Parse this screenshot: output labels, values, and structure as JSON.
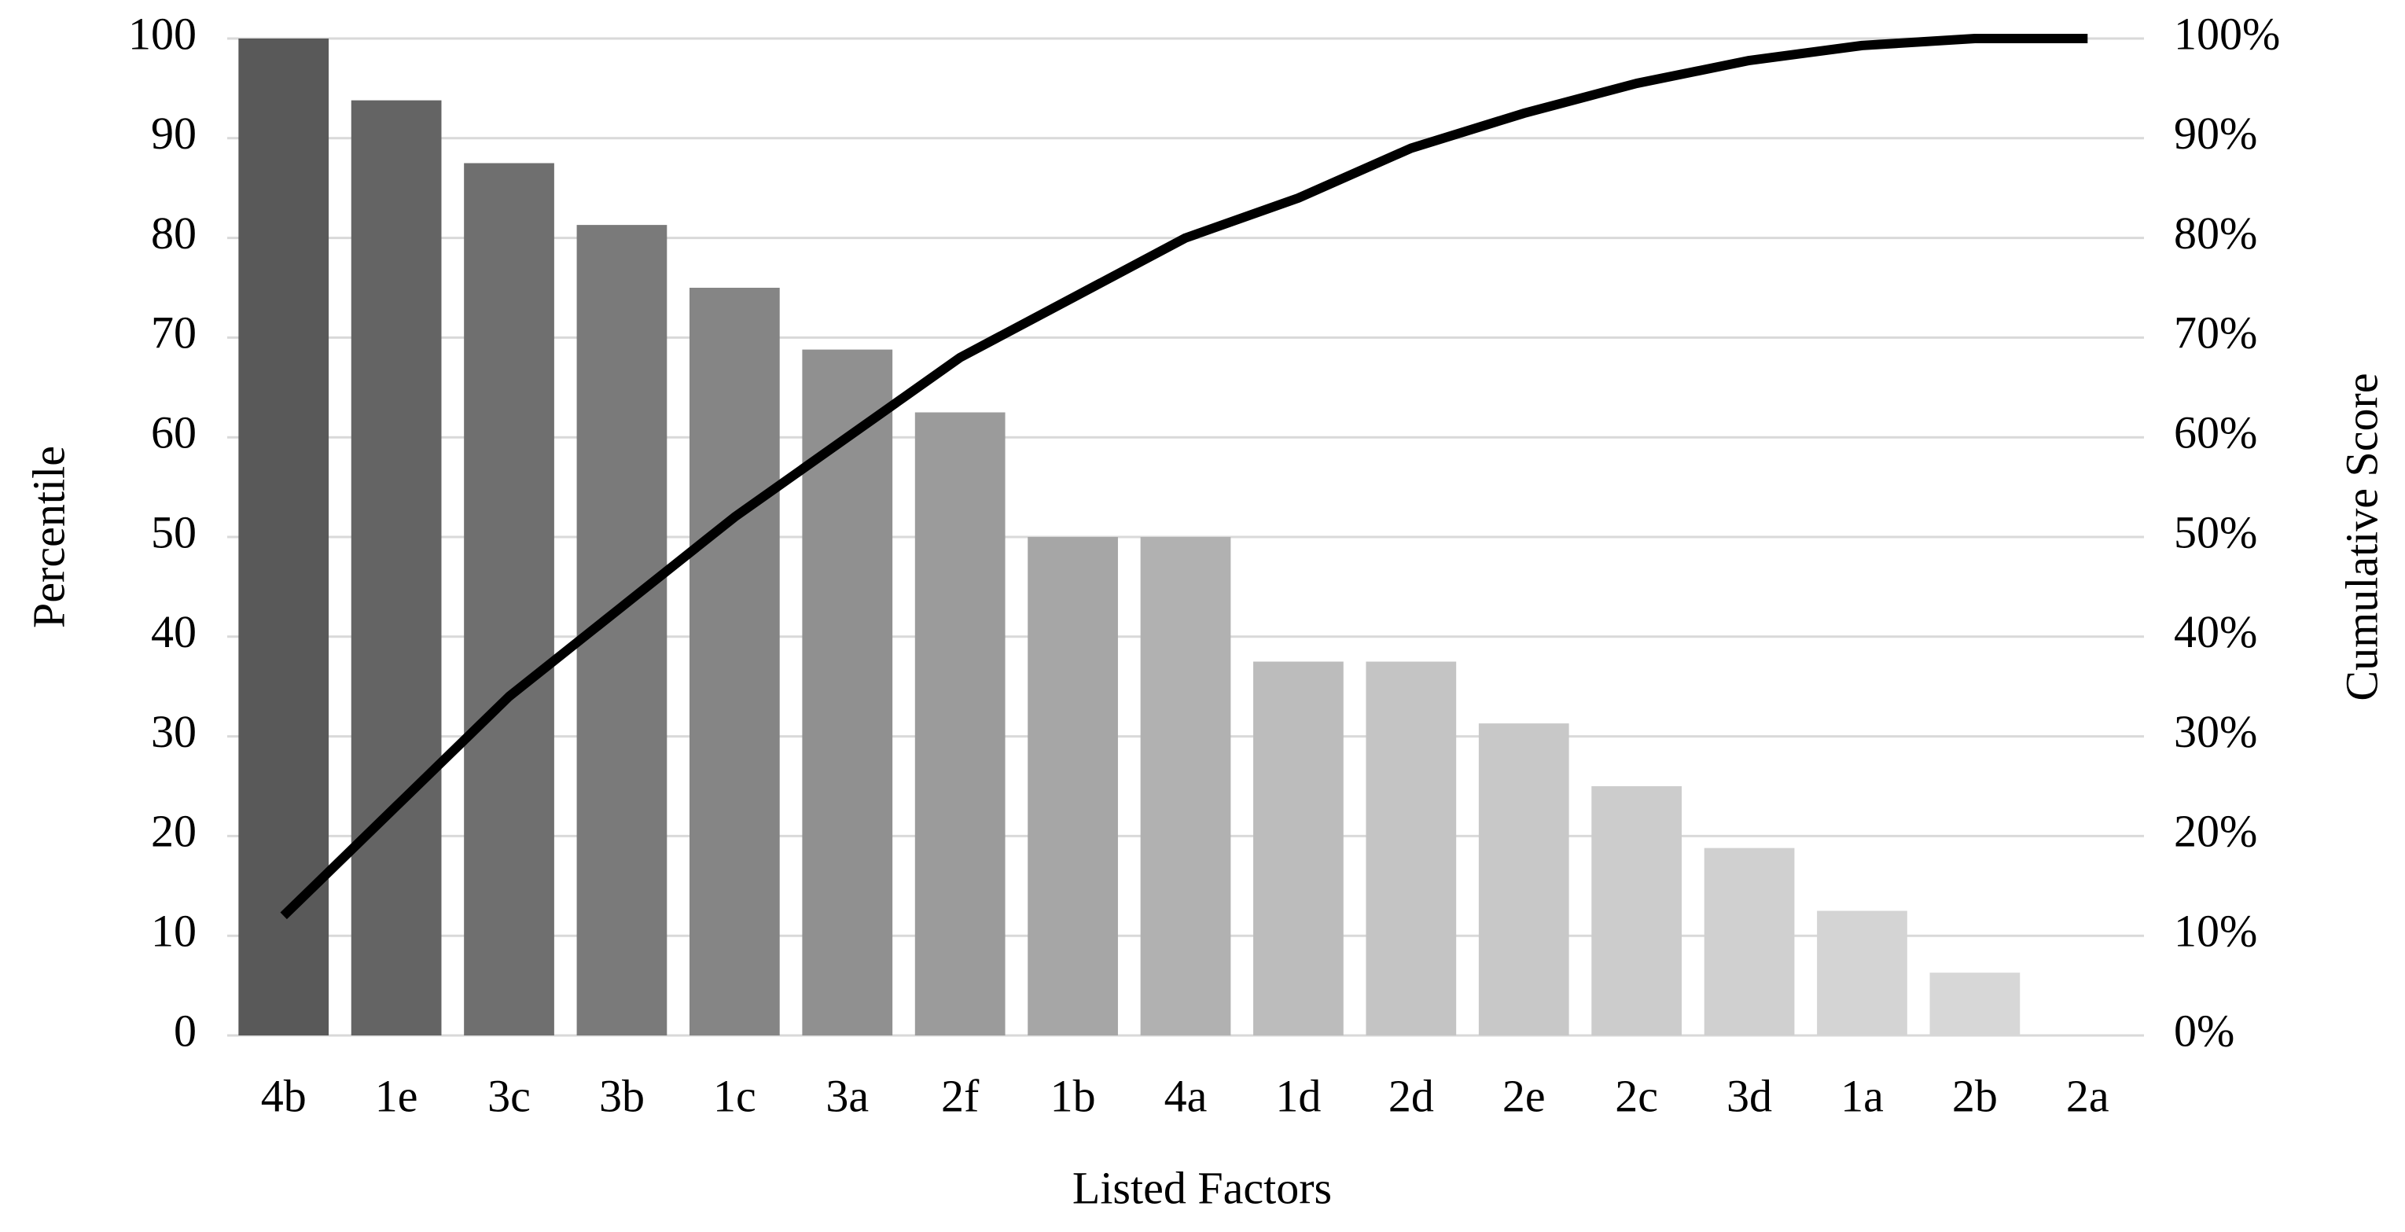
{
  "chart_data": {
    "type": "bar",
    "x_label": "Listed Factors",
    "y_label": "Percentile",
    "y2_label": "Cumulative Score",
    "categories": [
      "4b",
      "1e",
      "3c",
      "3b",
      "1c",
      "3a",
      "2f",
      "1b",
      "4a",
      "1d",
      "2d",
      "2e",
      "2c",
      "3d",
      "1a",
      "2b",
      "2a"
    ],
    "series": [
      {
        "type": "bar",
        "values": [
          100,
          93.8,
          87.5,
          81.3,
          75,
          68.8,
          62.5,
          50,
          50,
          37.5,
          37.5,
          31.3,
          25,
          18.8,
          12.5,
          6.3,
          0
        ],
        "colors": [
          "#595959",
          "#646464",
          "#6f6f6f",
          "#7a7a7a",
          "#858585",
          "#909090",
          "#9b9b9b",
          "#a6a6a6",
          "#b1b1b1",
          "#bcbcbc",
          "#c4c4c4",
          "#c8c8c8",
          "#cccccc",
          "#d0d0d0",
          "#d4d4d4",
          "#d7d7d7",
          "#d9d9d9"
        ]
      },
      {
        "type": "line",
        "axis": "y2",
        "color": "#000000",
        "values": [
          12,
          23,
          34,
          43,
          52,
          60,
          68,
          74,
          80,
          84,
          89,
          92.5,
          95.5,
          97.8,
          99.3,
          100,
          100
        ]
      }
    ],
    "ylim": [
      0,
      100
    ],
    "yticks": [
      0,
      10,
      20,
      30,
      40,
      50,
      60,
      70,
      80,
      90,
      100
    ],
    "y2lim": [
      0,
      100
    ],
    "y2ticks": [
      {
        "value": 0,
        "label": "0%"
      },
      {
        "value": 10,
        "label": "10%"
      },
      {
        "value": 20,
        "label": "20%"
      },
      {
        "value": 30,
        "label": "30%"
      },
      {
        "value": 40,
        "label": "40%"
      },
      {
        "value": 50,
        "label": "50%"
      },
      {
        "value": 60,
        "label": "60%"
      },
      {
        "value": 70,
        "label": "70%"
      },
      {
        "value": 80,
        "label": "80%"
      },
      {
        "value": 90,
        "label": "90%"
      },
      {
        "value": 100,
        "label": "100%"
      }
    ],
    "grid": true
  }
}
